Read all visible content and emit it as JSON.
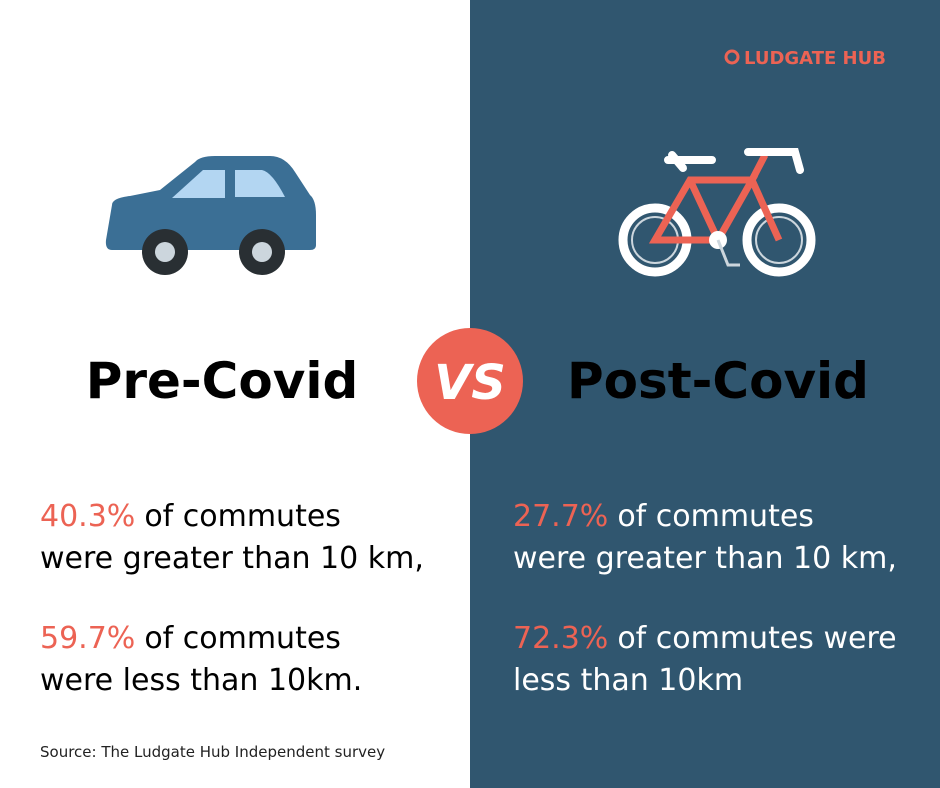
{
  "brand": "LUDGATE HUB",
  "vs": "VS",
  "left": {
    "heading": "Pre-Covid",
    "stats": [
      {
        "value": "40.3%",
        "lines": [
          "of commutes",
          "were greater than 10 km,"
        ]
      },
      {
        "value": "59.7%",
        "lines": [
          "of commutes",
          "were less than 10km."
        ]
      }
    ]
  },
  "right": {
    "heading": "Post-Covid",
    "stats": [
      {
        "value": "27.7%",
        "lines": [
          "of commutes",
          "were greater than 10 km,"
        ]
      },
      {
        "value": "72.3%",
        "lines": [
          "of commutes were",
          "less than 10km"
        ]
      }
    ]
  },
  "source": "Source: The Ludgate Hub Independent survey"
}
